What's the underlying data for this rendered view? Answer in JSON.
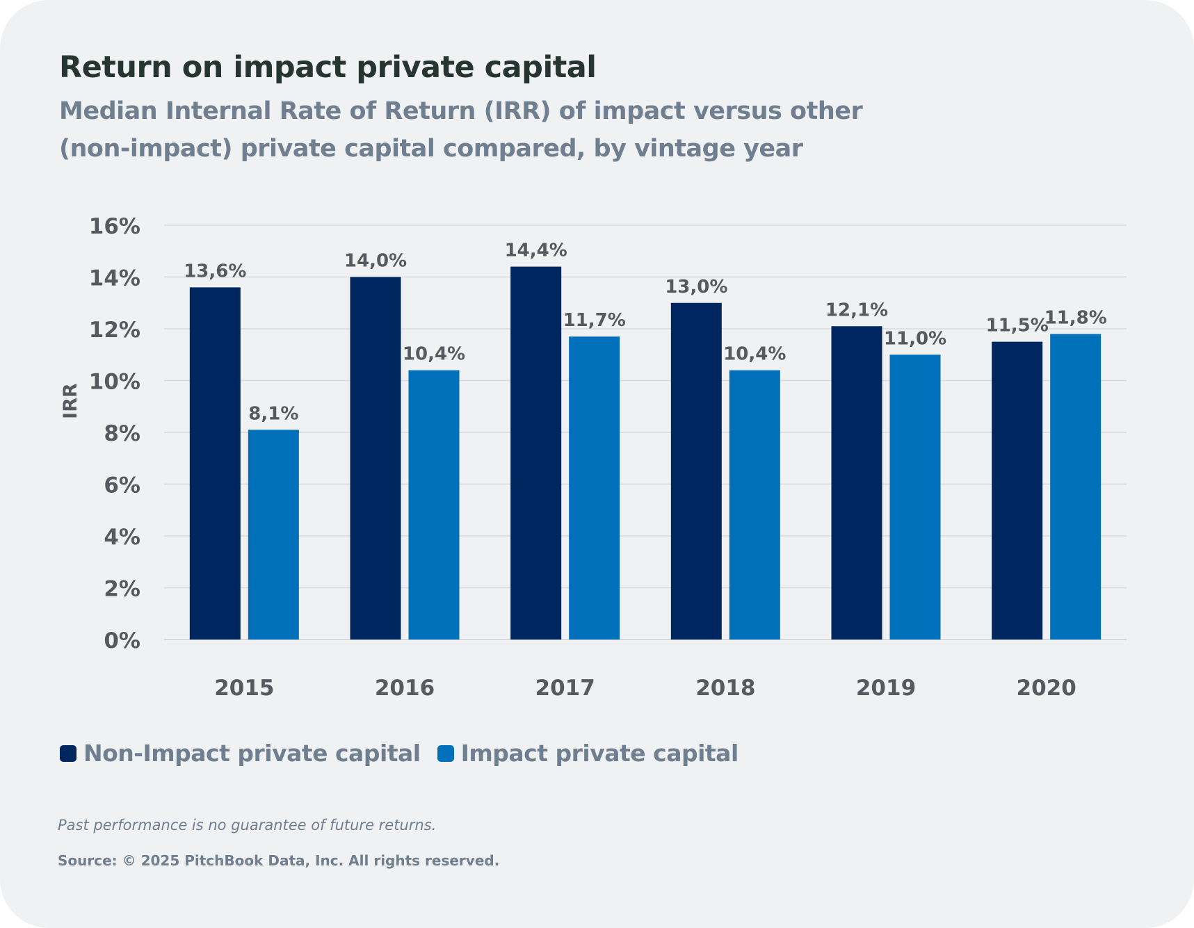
{
  "title": "Return on impact private capital",
  "subtitle": "Median Internal Rate of Return (IRR) of impact versus other (non-impact) private capital compared, by vintage year",
  "note": "Past performance is no guarantee of future returns.",
  "source": "Source: © 2025 PitchBook Data, Inc. All rights reserved.",
  "colors": {
    "non_impact": "#00265f",
    "impact": "#0070bb",
    "label_text": "#565a5e",
    "grid": "#d8dadd"
  },
  "chart_data": {
    "type": "bar",
    "categories": [
      "2015",
      "2016",
      "2017",
      "2018",
      "2019",
      "2020"
    ],
    "series": [
      {
        "name": "Non-Impact private capital",
        "values": [
          13.6,
          14.0,
          14.4,
          13.0,
          12.1,
          11.5
        ],
        "labels": [
          "13,6%",
          "14,0%",
          "14,4%",
          "13,0%",
          "12,1%",
          "11,5%"
        ]
      },
      {
        "name": "Impact private capital",
        "values": [
          8.1,
          10.4,
          11.7,
          10.4,
          11.0,
          11.8
        ],
        "labels": [
          "8,1%",
          "10,4%",
          "11,7%",
          "10,4%",
          "11,0%",
          "11,8%"
        ]
      }
    ],
    "ylabel": "IRR",
    "ylim": [
      0,
      16
    ],
    "yticks": [
      "0%",
      "2%",
      "4%",
      "6%",
      "8%",
      "10%",
      "12%",
      "14%",
      "16%"
    ],
    "grid": true,
    "legend": "bottom-left"
  }
}
